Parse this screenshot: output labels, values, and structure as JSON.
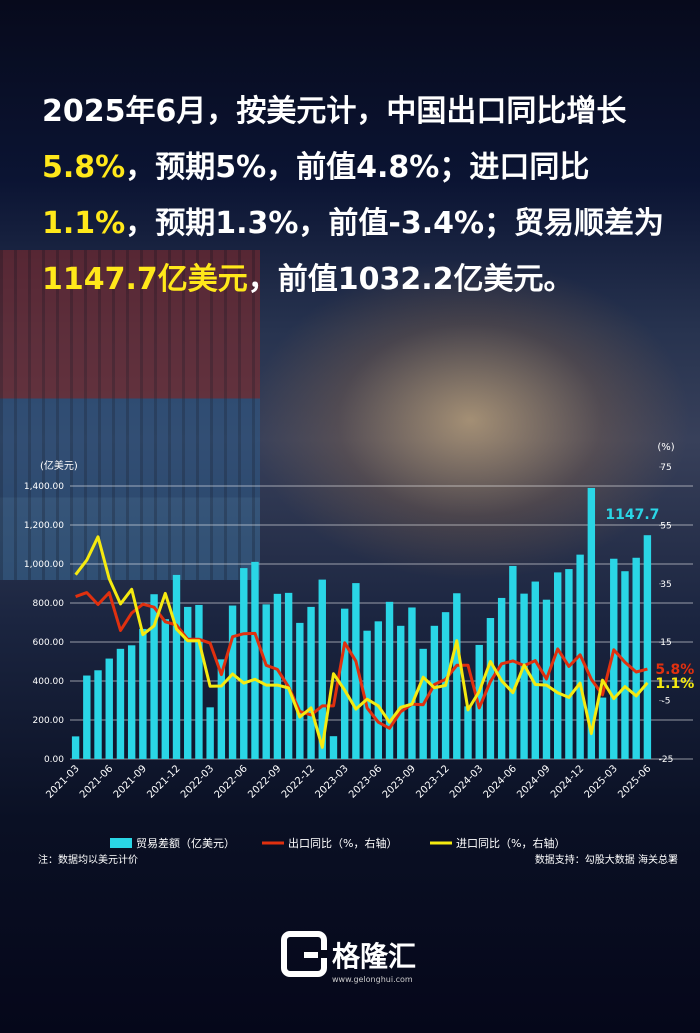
{
  "headline": {
    "segments": [
      {
        "text": "2025年6月，按美元计，中国出口同比增长",
        "highlight": false
      },
      {
        "text": "5.8%",
        "highlight": true
      },
      {
        "text": "，预期5%，前值4.8%；进口同比",
        "highlight": false
      },
      {
        "text": "1.1%",
        "highlight": true
      },
      {
        "text": "，预期1.3%，前值-3.4%；贸易顺差为",
        "highlight": false
      },
      {
        "text": "1147.7亿美元",
        "highlight": true
      },
      {
        "text": "，前值1032.2亿美元。",
        "highlight": false
      }
    ]
  },
  "chart_data": {
    "type": "bar-line",
    "ylabel": "(亿美元)",
    "y2label": "(%)",
    "note": "注：数据均以美元计价",
    "source": "数据支持：勾股大数据 海关总署",
    "categories": [
      "2021-03",
      null,
      null,
      "2021-06",
      null,
      null,
      "2021-09",
      null,
      null,
      "2021-12",
      null,
      null,
      "2022-03",
      null,
      null,
      "2022-06",
      null,
      null,
      "2022-09",
      null,
      null,
      "2022-12",
      null,
      null,
      "2023-03",
      null,
      null,
      "2023-06",
      null,
      null,
      "2023-09",
      null,
      null,
      "2023-12",
      null,
      null,
      "2024-03",
      null,
      null,
      "2024-06",
      null,
      null,
      "2024-09",
      null,
      null,
      "2024-12",
      null,
      null,
      "2025-03",
      null,
      null,
      "2025-06"
    ],
    "ylim": [
      0,
      1400
    ],
    "yticks": [
      {
        "value": 0,
        "label": "0.00"
      },
      {
        "value": 200,
        "label": "200.00"
      },
      {
        "value": 400,
        "label": "400.00"
      },
      {
        "value": 600,
        "label": "600.00"
      },
      {
        "value": 800,
        "label": "800.00"
      },
      {
        "value": 1000,
        "label": "1,000.00"
      },
      {
        "value": 1200,
        "label": "1,200.00"
      },
      {
        "value": 1400,
        "label": "1,400.00"
      }
    ],
    "y2lim": [
      -25,
      75
    ],
    "y2ticks": [
      -25,
      -5,
      15,
      35,
      55,
      75
    ],
    "grid": true,
    "series": [
      {
        "name": "贸易差额（亿美元）",
        "type": "bar",
        "axis": "y",
        "color": "#2ad6e6",
        "values": [
          116,
          428,
          455,
          515,
          565,
          583,
          667,
          845,
          717,
          944,
          780,
          790,
          265,
          511,
          787,
          979,
          1011,
          793,
          847,
          852,
          698,
          780,
          920,
          117,
          771,
          902,
          658,
          706,
          806,
          683,
          777,
          565,
          683,
          753,
          850,
          270,
          585,
          723,
          826,
          990,
          848,
          910,
          817,
          957,
          974,
          1048,
          1390,
          315,
          1027,
          963,
          1032,
          1147.7
        ],
        "value_labels": [
          null,
          null,
          null,
          null,
          null,
          null,
          null,
          null,
          null,
          null,
          null,
          null,
          null,
          null,
          null,
          null,
          null,
          null,
          null,
          null,
          null,
          null,
          null,
          null,
          null,
          null,
          null,
          null,
          null,
          null,
          null,
          null,
          null,
          null,
          null,
          null,
          null,
          null,
          null,
          null,
          null,
          null,
          null,
          null,
          null,
          null,
          null,
          null,
          null,
          null,
          null,
          "1147.7"
        ]
      },
      {
        "name": "出口同比（%，右轴）",
        "type": "line",
        "axis": "y2",
        "color": "#e0300f",
        "values": [
          30.6,
          32,
          27.9,
          32,
          19,
          25,
          28,
          27,
          22,
          20.9,
          16,
          16,
          14.7,
          3.9,
          16.9,
          17.9,
          18,
          7.1,
          5.7,
          -0.3,
          -8.7,
          -9.9,
          -6.8,
          -6.8,
          14.8,
          8.5,
          -7.5,
          -12.4,
          -14.5,
          -8.8,
          -6.2,
          -6.4,
          0.5,
          2.3,
          7.1,
          7.1,
          -7.5,
          1.5,
          7.6,
          8.6,
          7,
          8.7,
          2.4,
          12.7,
          6.7,
          10.7,
          2.3,
          -3,
          12.4,
          8.1,
          4.8,
          5.8
        ],
        "value_labels": [
          null,
          null,
          null,
          null,
          null,
          null,
          null,
          null,
          null,
          null,
          null,
          null,
          null,
          null,
          null,
          null,
          null,
          null,
          null,
          null,
          null,
          null,
          null,
          null,
          null,
          null,
          null,
          null,
          null,
          null,
          null,
          null,
          null,
          null,
          null,
          null,
          null,
          null,
          null,
          null,
          null,
          null,
          null,
          null,
          null,
          null,
          null,
          null,
          null,
          null,
          null,
          "5.8%"
        ]
      },
      {
        "name": "进口同比（%，右轴）",
        "type": "line",
        "axis": "y2",
        "color": "#f5ea10",
        "values": [
          38.1,
          43.1,
          51.1,
          36.7,
          28.1,
          33.1,
          17.6,
          20.6,
          31.7,
          19.5,
          15.5,
          15.5,
          -0.1,
          0,
          4.1,
          1,
          2.3,
          0.3,
          0.3,
          -0.7,
          -10.6,
          -7.5,
          -21,
          4.2,
          -1.4,
          -7.9,
          -4.5,
          -6.8,
          -12.4,
          -7.3,
          -6.2,
          3,
          -0.6,
          0.2,
          15.5,
          -8.2,
          -1.9,
          8.4,
          1.8,
          -2.3,
          7.2,
          0.5,
          0.3,
          -2.3,
          -3.9,
          1,
          -16.3,
          2,
          -4.3,
          -0.2,
          -3.4,
          1.1
        ],
        "value_labels": [
          null,
          null,
          null,
          null,
          null,
          null,
          null,
          null,
          null,
          null,
          null,
          null,
          null,
          null,
          null,
          null,
          null,
          null,
          null,
          null,
          null,
          null,
          null,
          null,
          null,
          null,
          null,
          null,
          null,
          null,
          null,
          null,
          null,
          null,
          null,
          null,
          null,
          null,
          null,
          null,
          null,
          null,
          null,
          null,
          null,
          null,
          null,
          null,
          null,
          null,
          null,
          "1.1%"
        ]
      }
    ]
  },
  "brand": {
    "name": "格隆汇",
    "url": "www.gelonghui.com"
  }
}
